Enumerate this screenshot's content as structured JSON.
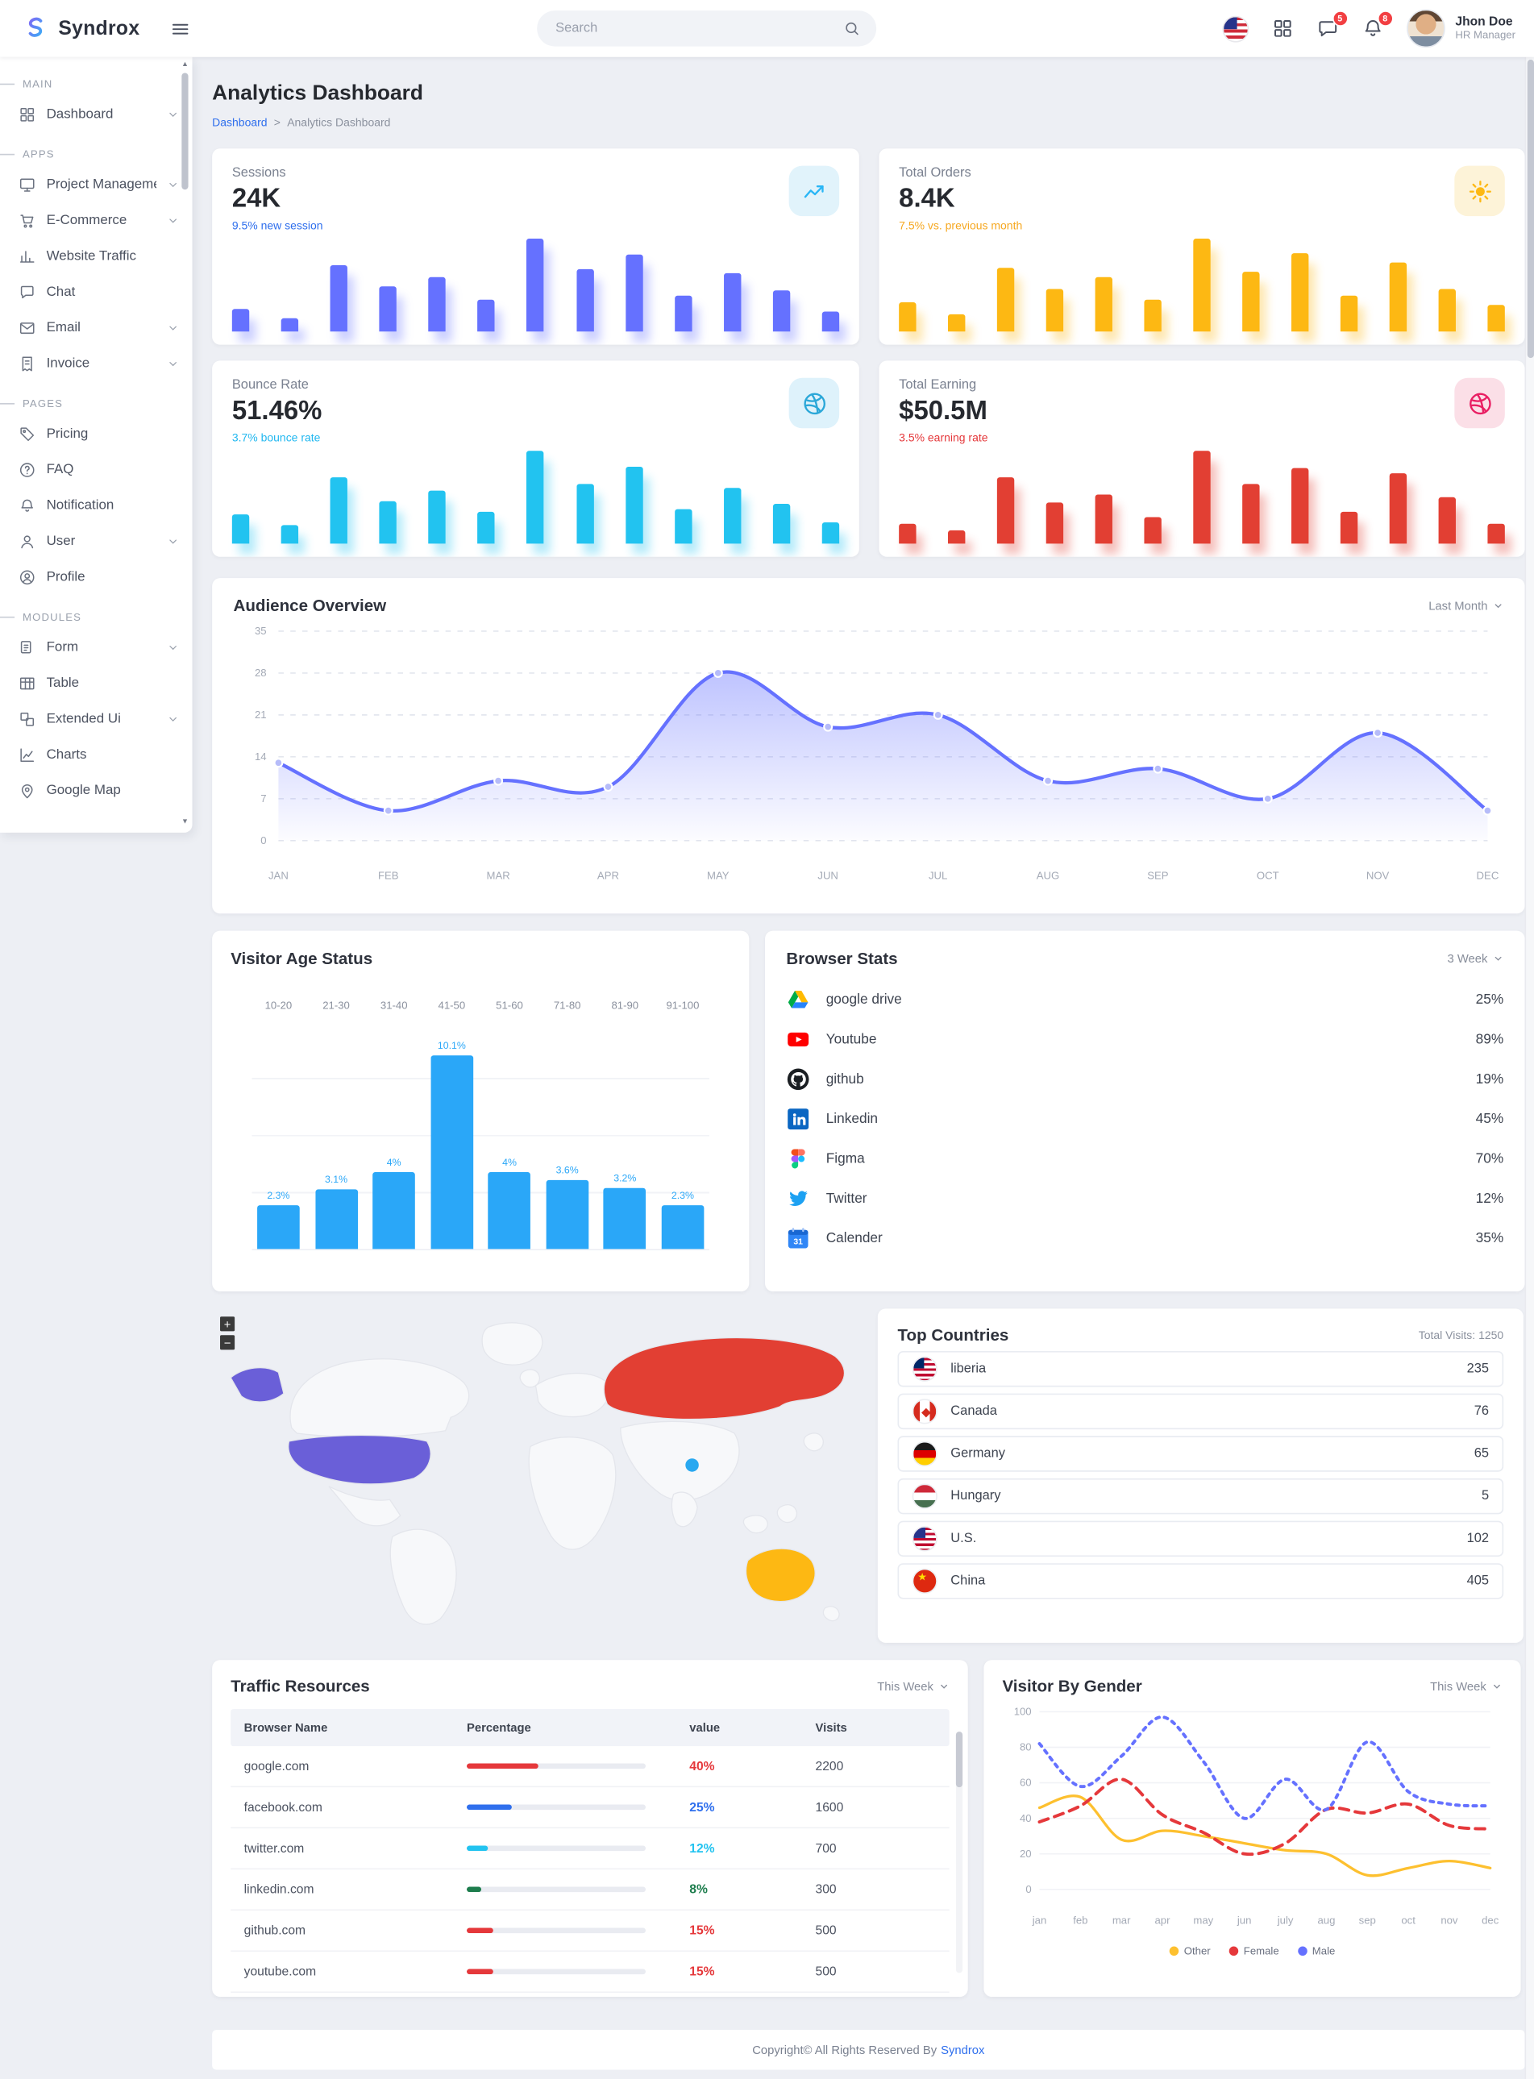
{
  "navbar": {
    "logo_text": "Syndrox",
    "search_placeholder": "Search",
    "chat_badge": "5",
    "notification_badge": "8",
    "user_name": "Jhon Doe",
    "user_role": "HR Manager"
  },
  "sidebar": {
    "sections": [
      {
        "label": "MAIN",
        "items": [
          {
            "label": "Dashboard",
            "icon": "dashboard-icon",
            "chevron": true
          }
        ]
      },
      {
        "label": "APPS",
        "items": [
          {
            "label": "Project Management",
            "icon": "project-icon",
            "chevron": true
          },
          {
            "label": "E-Commerce",
            "icon": "cart-icon",
            "chevron": true
          },
          {
            "label": "Website Traffic",
            "icon": "traffic-icon",
            "chevron": false
          },
          {
            "label": "Chat",
            "icon": "chat-icon",
            "chevron": false
          },
          {
            "label": "Email",
            "icon": "mail-icon",
            "chevron": true
          },
          {
            "label": "Invoice",
            "icon": "invoice-icon",
            "chevron": true
          }
        ]
      },
      {
        "label": "PAGES",
        "items": [
          {
            "label": "Pricing",
            "icon": "pricing-icon",
            "chevron": false
          },
          {
            "label": "FAQ",
            "icon": "faq-icon",
            "chevron": false
          },
          {
            "label": "Notification",
            "icon": "notification-icon",
            "chevron": false
          },
          {
            "label": "User",
            "icon": "user-icon",
            "chevron": true
          },
          {
            "label": "Profile",
            "icon": "profile-icon",
            "chevron": false
          }
        ]
      },
      {
        "label": "MODULES",
        "items": [
          {
            "label": "Form",
            "icon": "form-icon",
            "chevron": true
          },
          {
            "label": "Table",
            "icon": "table-icon",
            "chevron": false
          },
          {
            "label": "Extended Ui",
            "icon": "extended-ui-icon",
            "chevron": true
          },
          {
            "label": "Charts",
            "icon": "charts-icon",
            "chevron": false
          },
          {
            "label": "Google Map",
            "icon": "map-icon",
            "chevron": false
          }
        ]
      }
    ]
  },
  "page": {
    "title": "Analytics Dashboard",
    "breadcrumb_home": "Dashboard",
    "breadcrumb_sep": ">",
    "breadcrumb_current": "Analytics Dashboard"
  },
  "stat_cards": [
    {
      "label": "Sessions",
      "value": "24K",
      "sub": "9.5% new session",
      "sub_color": "#2f6fed",
      "icon": "line-chart-icon",
      "icon_bg": "#e1f3fb",
      "icon_color": "#29b6f6",
      "bar_color": "#6571ff",
      "bars": [
        18,
        10,
        52,
        35,
        42,
        25,
        72,
        48,
        60,
        28,
        45,
        32,
        15
      ]
    },
    {
      "label": "Total Orders",
      "value": "8.4K",
      "sub": "7.5% vs. previous month",
      "sub_color": "#f6a821",
      "icon": "sun-icon",
      "icon_bg": "#fdf3d8",
      "icon_color": "#fdb813",
      "bar_color": "#fdb813",
      "bars": [
        20,
        12,
        45,
        30,
        38,
        22,
        65,
        42,
        55,
        25,
        48,
        30,
        18
      ]
    },
    {
      "label": "Bounce Rate",
      "value": "51.46%",
      "sub": "3.7% bounce rate",
      "sub_color": "#22b8f0",
      "icon": "dribbble-icon",
      "icon_bg": "#def2fb",
      "icon_color": "#2aa7d8",
      "bar_color": "#22c3f0",
      "bars": [
        22,
        14,
        50,
        32,
        40,
        24,
        70,
        45,
        58,
        26,
        42,
        30,
        16
      ]
    },
    {
      "label": "Total Earning",
      "value": "$50.5M",
      "sub": "3.5% earning rate",
      "sub_color": "#e5383b",
      "icon": "dribbble-icon",
      "icon_bg": "#fbdfe7",
      "icon_color": "#e91e63",
      "bar_color": "#e23f33",
      "bars": [
        15,
        10,
        48,
        30,
        36,
        20,
        68,
        44,
        56,
        24,
        52,
        34,
        14
      ]
    }
  ],
  "audience": {
    "title": "Audience Overview",
    "filter": "Last Month",
    "months": [
      "JAN",
      "FEB",
      "MAR",
      "APR",
      "MAY",
      "JUN",
      "JUL",
      "AUG",
      "SEP",
      "OCT",
      "NOV",
      "DEC"
    ],
    "values": [
      13,
      5,
      10,
      9,
      28,
      19,
      21,
      10,
      12,
      7,
      18,
      5
    ],
    "y_ticks": [
      0,
      7,
      14,
      21,
      28,
      35
    ],
    "line_color": "#6571ff"
  },
  "age_status": {
    "title": "Visitor Age Status",
    "categories": [
      "10-20",
      "21-30",
      "31-40",
      "41-50",
      "51-60",
      "71-80",
      "81-90",
      "91-100"
    ],
    "values": [
      2.3,
      3.1,
      4,
      10.1,
      4,
      3.6,
      3.2,
      2.3
    ],
    "labels": [
      "2.3%",
      "3.1%",
      "4%",
      "10.1%",
      "4%",
      "3.6%",
      "3.2%",
      "2.3%"
    ],
    "bar_color": "#2aa7f8"
  },
  "browser_stats": {
    "title": "Browser Stats",
    "filter": "3 Week",
    "items": [
      {
        "name": "google drive",
        "value": "25%",
        "icon": "google-drive-icon"
      },
      {
        "name": "Youtube",
        "value": "89%",
        "icon": "youtube-icon"
      },
      {
        "name": "github",
        "value": "19%",
        "icon": "github-icon"
      },
      {
        "name": "Linkedin",
        "value": "45%",
        "icon": "linkedin-icon"
      },
      {
        "name": "Figma",
        "value": "70%",
        "icon": "figma-icon"
      },
      {
        "name": "Twitter",
        "value": "12%",
        "icon": "twitter-icon"
      },
      {
        "name": "Calender",
        "value": "35%",
        "icon": "calendar-icon"
      }
    ]
  },
  "map": {
    "zoom_in": "+",
    "zoom_out": "−",
    "marker_color": "#29a8f0",
    "regions": [
      {
        "name": "alaska",
        "color": "#6a5fd8"
      },
      {
        "name": "usa",
        "color": "#6a5fd8"
      },
      {
        "name": "russia",
        "color": "#e23f33"
      },
      {
        "name": "australia",
        "color": "#fdb813"
      }
    ]
  },
  "top_countries": {
    "title": "Top Countries",
    "total": "Total Visits: 1250",
    "rows": [
      {
        "name": "liberia",
        "value": "235",
        "flag": "liberia"
      },
      {
        "name": "Canada",
        "value": "76",
        "flag": "canada"
      },
      {
        "name": "Germany",
        "value": "65",
        "flag": "germany"
      },
      {
        "name": "Hungary",
        "value": "5",
        "flag": "hungary"
      },
      {
        "name": "U.S.",
        "value": "102",
        "flag": "us"
      },
      {
        "name": "China",
        "value": "405",
        "flag": "china"
      }
    ]
  },
  "traffic": {
    "title": "Traffic Resources",
    "filter": "This Week",
    "headers": [
      "Browser Name",
      "Percentage",
      "value",
      "Visits"
    ],
    "rows": [
      {
        "name": "google.com",
        "percent": 40,
        "percent_label": "40%",
        "visits": "2200",
        "color": "#e5383b"
      },
      {
        "name": "facebook.com",
        "percent": 25,
        "percent_label": "25%",
        "visits": "1600",
        "color": "#2f6fed"
      },
      {
        "name": "twitter.com",
        "percent": 12,
        "percent_label": "12%",
        "visits": "700",
        "color": "#22c3f0"
      },
      {
        "name": "linkedin.com",
        "percent": 8,
        "percent_label": "8%",
        "visits": "300",
        "color": "#1d7d4d"
      },
      {
        "name": "github.com",
        "percent": 15,
        "percent_label": "15%",
        "visits": "500",
        "color": "#e5383b"
      },
      {
        "name": "youtube.com",
        "percent": 15,
        "percent_label": "15%",
        "visits": "500",
        "color": "#e5383b"
      }
    ]
  },
  "gender": {
    "title": "Visitor By Gender",
    "filter": "This Week",
    "months": [
      "jan",
      "feb",
      "mar",
      "apr",
      "may",
      "jun",
      "july",
      "aug",
      "sep",
      "oct",
      "nov",
      "dec"
    ],
    "y_ticks": [
      0,
      20,
      40,
      60,
      80,
      100
    ],
    "series": [
      {
        "name": "Other",
        "color": "#fdc02f",
        "style": "solid",
        "values": [
          46,
          52,
          28,
          33,
          30,
          26,
          22,
          20,
          8,
          12,
          16,
          12
        ]
      },
      {
        "name": "Female",
        "color": "#e5383b",
        "style": "dashed",
        "values": [
          38,
          47,
          62,
          42,
          32,
          20,
          26,
          45,
          43,
          48,
          36,
          34
        ]
      },
      {
        "name": "Male",
        "color": "#6571ff",
        "style": "dotted",
        "values": [
          82,
          58,
          75,
          97,
          72,
          40,
          62,
          45,
          83,
          55,
          48,
          47
        ]
      }
    ]
  },
  "footer": {
    "text": "Copyright© All Rights Reserved By",
    "brand": "Syndrox"
  }
}
